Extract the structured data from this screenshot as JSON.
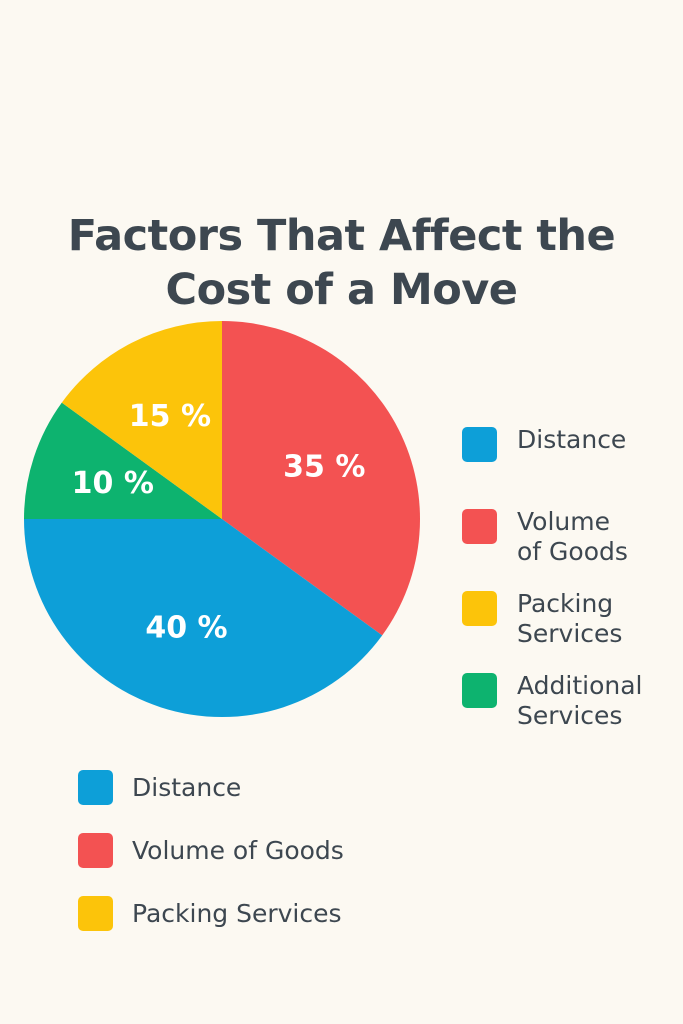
{
  "title": {
    "line1": "Factors That Affect the",
    "line2": "Cost of a Move"
  },
  "chart_data": {
    "type": "pie",
    "title": "Factors That Affect the Cost of a Move",
    "unit": "%",
    "slices": [
      {
        "name": "Volume of Goods",
        "value": 35,
        "label": "35 %",
        "color": "#f35252"
      },
      {
        "name": "Distance",
        "value": 40,
        "label": "40 %",
        "color": "#0d9fd8"
      },
      {
        "name": "Additional Services",
        "value": 10,
        "label": "10 %",
        "color": "#0db36f"
      },
      {
        "name": "Packing Services",
        "value": 15,
        "label": "15 %",
        "color": "#fcc40a"
      }
    ],
    "start_angle_deg": 0,
    "direction": "clockwise",
    "legend_placement": "right"
  },
  "legend_right": [
    {
      "label_lines": [
        "Distance"
      ],
      "color": "#0d9fd8"
    },
    {
      "label_lines": [
        "Volume",
        "of Goods"
      ],
      "color": "#f35252"
    },
    {
      "label_lines": [
        "Packing",
        "Services"
      ],
      "color": "#fcc40a"
    },
    {
      "label_lines": [
        "Additional",
        "Services"
      ],
      "color": "#0db36f"
    }
  ],
  "legend_bottom": [
    {
      "label": "Distance",
      "color": "#0d9fd8"
    },
    {
      "label": "Volume of Goods",
      "color": "#f35252"
    },
    {
      "label": "Packing Services",
      "color": "#fcc40a"
    }
  ]
}
